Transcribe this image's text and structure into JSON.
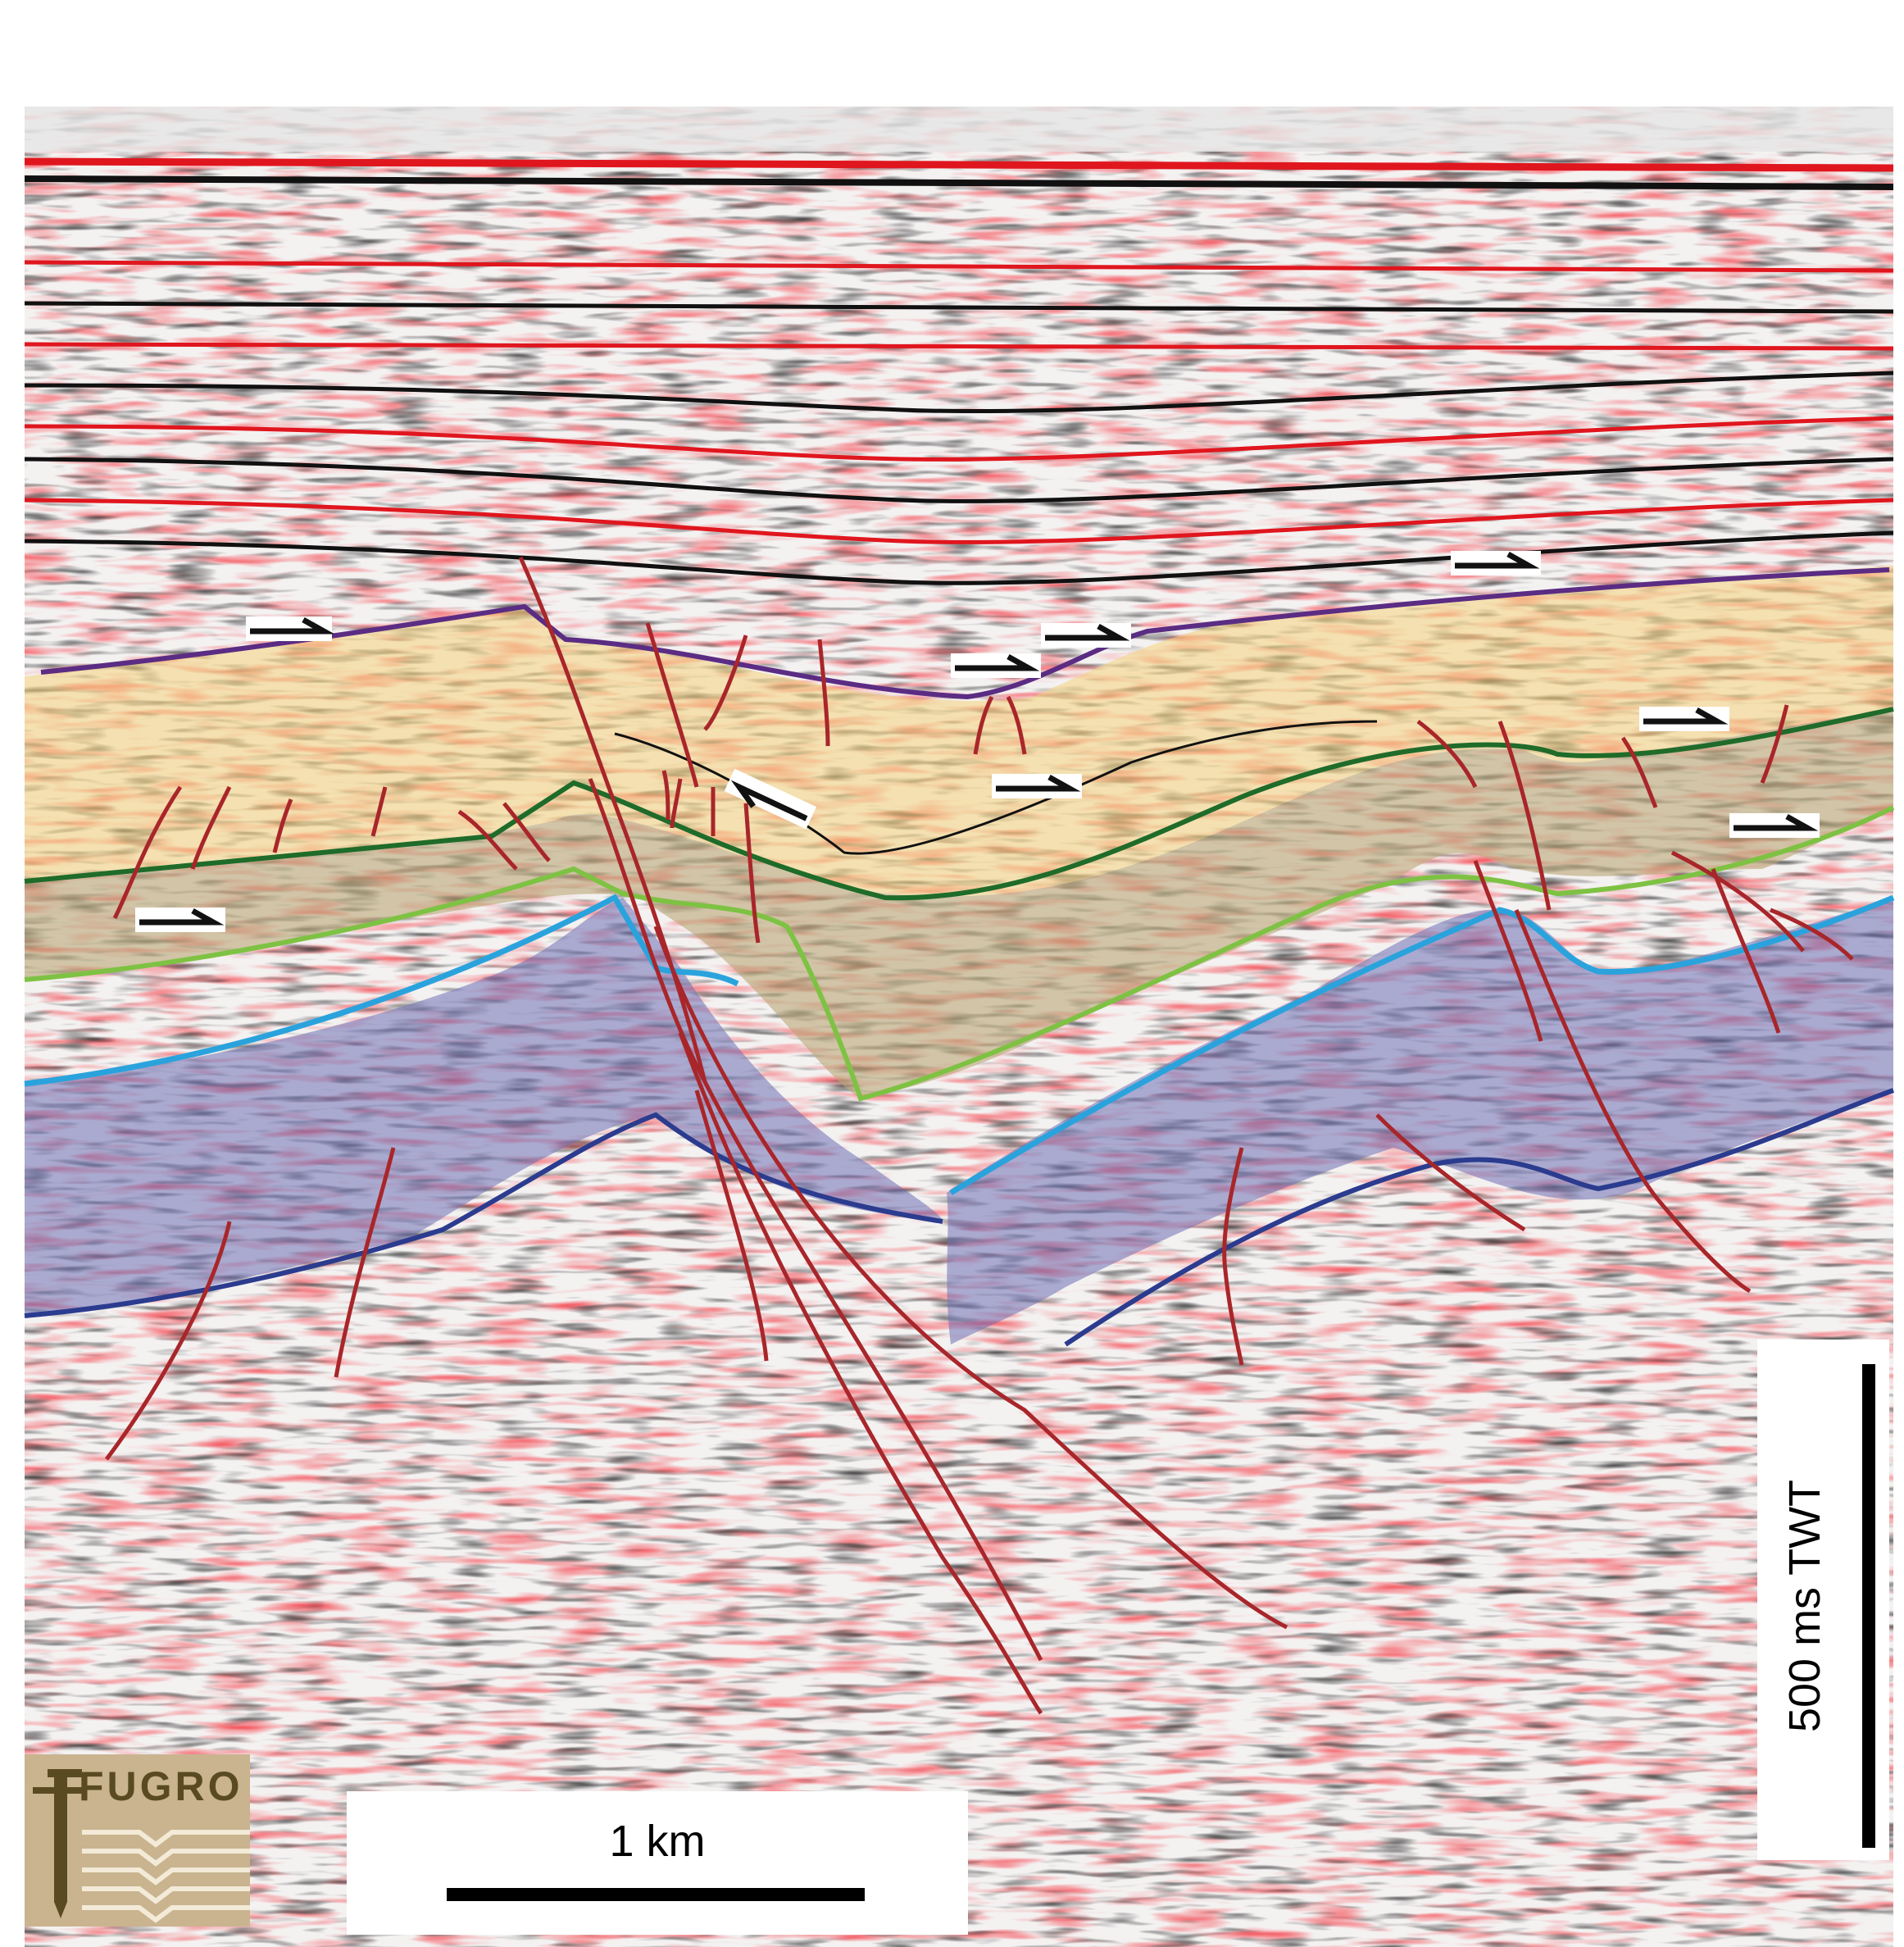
{
  "colors": {
    "background": "#ffffff",
    "seismic_red": "#e0161e",
    "seismic_black": "#111111",
    "fault": "#a8262a",
    "yellow_unit": "#f4d27a",
    "olive_unit": "#b9a677",
    "blue_unit": "#6e6fb5",
    "horizon_purple": "#5b2c83",
    "horizon_green_dark": "#1f6b2a",
    "horizon_green_light": "#7ec243",
    "horizon_cyan": "#2aa3dd",
    "horizon_navy": "#2b3c8f",
    "logo_tan": "#c9b48f"
  },
  "scale_bars": {
    "horizontal_label": "1 km",
    "vertical_label": "500 ms TWT"
  },
  "logo": {
    "text": "FUGRO"
  }
}
